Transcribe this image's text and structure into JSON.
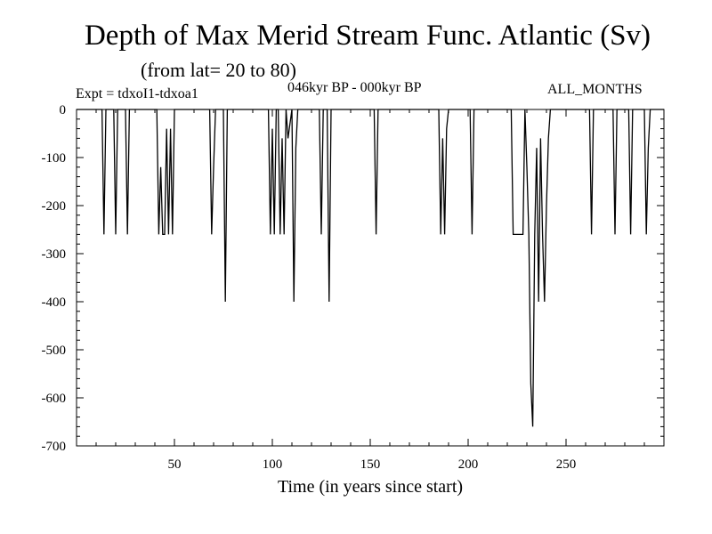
{
  "header": {
    "title": "Depth of Max Merid Stream Func. Atlantic (Sv)",
    "subtitle": "(from lat= 20 to 80)",
    "experiment": "Expt = tdxoI1-tdxoa1",
    "period": "046kyr BP - 000kyr BP",
    "months": "ALL_MONTHS"
  },
  "chart_data": {
    "type": "line",
    "title": "Depth of Max Merid Stream Func. Atlantic (Sv)",
    "subtitle": "(from lat= 20 to 80)",
    "xlabel": "Time (in years since start)",
    "ylabel": "",
    "xlim": [
      0,
      300
    ],
    "ylim": [
      -700,
      0
    ],
    "xticks": [
      50,
      100,
      150,
      200,
      250
    ],
    "yticks": [
      0,
      -100,
      -200,
      -300,
      -400,
      -500,
      -600,
      -700
    ],
    "grid": false,
    "line_color": "#000000",
    "series": [
      {
        "x": [
          0,
          13,
          14,
          15,
          19,
          20,
          21,
          25,
          26,
          27,
          41,
          42,
          43,
          44,
          45,
          46,
          47,
          48,
          49,
          50,
          68,
          69,
          70,
          71,
          75,
          76,
          77,
          98,
          99,
          100,
          101,
          102,
          103,
          104,
          105,
          106,
          107,
          108,
          110,
          111,
          112,
          113,
          124,
          125,
          126,
          128,
          129,
          130,
          152,
          153,
          154,
          185,
          186,
          187,
          188,
          189,
          190,
          201,
          202,
          203,
          222,
          223,
          224,
          225,
          228,
          229,
          230,
          231,
          232,
          233,
          234,
          235,
          236,
          237,
          238,
          239,
          240,
          241,
          242,
          262,
          263,
          264,
          274,
          275,
          276,
          282,
          283,
          284,
          290,
          291,
          292,
          293,
          300
        ],
        "y": [
          0,
          0,
          -260,
          0,
          0,
          -260,
          0,
          0,
          -260,
          0,
          0,
          -260,
          -120,
          -260,
          -260,
          -40,
          -260,
          -40,
          -260,
          0,
          0,
          -260,
          -120,
          0,
          0,
          -400,
          0,
          0,
          -260,
          -40,
          -260,
          0,
          0,
          -260,
          -60,
          -260,
          0,
          -60,
          0,
          -400,
          -80,
          0,
          0,
          -260,
          0,
          0,
          -400,
          0,
          0,
          -260,
          0,
          0,
          -260,
          -60,
          -260,
          -40,
          0,
          0,
          -260,
          0,
          0,
          -260,
          -260,
          -260,
          -260,
          0,
          -120,
          -260,
          -570,
          -660,
          -260,
          -80,
          -400,
          -60,
          -260,
          -400,
          -200,
          -60,
          0,
          0,
          -260,
          0,
          0,
          -260,
          0,
          0,
          -260,
          0,
          0,
          -260,
          -80,
          0,
          0
        ]
      }
    ]
  }
}
